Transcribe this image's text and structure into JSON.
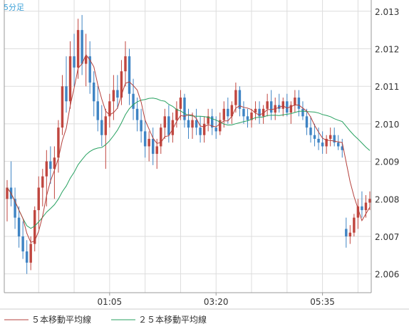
{
  "period_label": "5分足",
  "colors": {
    "up": "#c0463f",
    "down": "#3f84c4",
    "ma5": "#b5403c",
    "ma25": "#27a160",
    "grid": "#dddddd",
    "axis": "#999999",
    "period": "#3aa0d8"
  },
  "chart_data": {
    "type": "candlestick",
    "ylim": [
      2.0055,
      2.0133
    ],
    "y_ticks": [
      "2.013",
      "2.012",
      "2.011",
      "2.010",
      "2.009",
      "2.008",
      "2.007",
      "2.006"
    ],
    "x_ticks": [
      {
        "label": "01:05",
        "index": 26
      },
      {
        "label": "03:20",
        "index": 53
      },
      {
        "label": "05:35",
        "index": 80
      }
    ],
    "series": [
      {
        "name": "５本移動平均線",
        "color": "#b5403c"
      },
      {
        "name": "２５本移動平均線",
        "color": "#27a160"
      }
    ],
    "candles": [
      [
        2.008,
        2.0085,
        2.0074,
        2.0083
      ],
      [
        2.0083,
        2.009,
        2.0078,
        2.008
      ],
      [
        2.008,
        2.0083,
        2.0072,
        2.0075
      ],
      [
        2.0075,
        2.0078,
        2.0067,
        2.007
      ],
      [
        2.007,
        2.0074,
        2.0064,
        2.0066
      ],
      [
        2.0066,
        2.0069,
        2.006,
        2.0063
      ],
      [
        2.0063,
        2.007,
        2.0061,
        2.0068
      ],
      [
        2.0068,
        2.0078,
        2.0066,
        2.0077
      ],
      [
        2.0077,
        2.0086,
        2.0072,
        2.0083
      ],
      [
        2.0083,
        2.0088,
        2.0078,
        2.0086
      ],
      [
        2.0086,
        2.0093,
        2.0078,
        2.009
      ],
      [
        2.009,
        2.0094,
        2.0084,
        2.0088
      ],
      [
        2.0088,
        2.0094,
        2.008,
        2.0091
      ],
      [
        2.0091,
        2.0101,
        2.0087,
        2.0099
      ],
      [
        2.0099,
        2.0113,
        2.0097,
        2.011
      ],
      [
        2.011,
        2.0118,
        2.0103,
        2.0106
      ],
      [
        2.0106,
        2.0122,
        2.0104,
        2.0118
      ],
      [
        2.0118,
        2.0124,
        2.011,
        2.0115
      ],
      [
        2.0115,
        2.0128,
        2.0112,
        2.0125
      ],
      [
        2.0125,
        2.0129,
        2.0113,
        2.0116
      ],
      [
        2.0116,
        2.0124,
        2.011,
        2.0118
      ],
      [
        2.0118,
        2.0122,
        2.0108,
        2.0111
      ],
      [
        2.0111,
        2.0114,
        2.0102,
        2.0106
      ],
      [
        2.0106,
        2.011,
        2.0098,
        2.0101
      ],
      [
        2.0101,
        2.0105,
        2.0094,
        2.0097
      ],
      [
        2.0097,
        2.0104,
        2.0088,
        2.0102
      ],
      [
        2.0102,
        2.0108,
        2.0099,
        2.0106
      ],
      [
        2.0106,
        2.0113,
        2.0101,
        2.0109
      ],
      [
        2.0109,
        2.0113,
        2.0104,
        2.0107
      ],
      [
        2.0107,
        2.0117,
        2.0105,
        2.0114
      ],
      [
        2.0114,
        2.0122,
        2.011,
        2.0118
      ],
      [
        2.0118,
        2.012,
        2.0105,
        2.0108
      ],
      [
        2.0108,
        2.0112,
        2.0101,
        2.0104
      ],
      [
        2.0104,
        2.0107,
        2.0098,
        2.0101
      ],
      [
        2.0101,
        2.0104,
        2.0095,
        2.0098
      ],
      [
        2.0098,
        2.0101,
        2.0091,
        2.0094
      ],
      [
        2.0094,
        2.0098,
        2.009,
        2.0096
      ],
      [
        2.0096,
        2.0099,
        2.0089,
        2.0092
      ],
      [
        2.0092,
        2.0096,
        2.0088,
        2.0094
      ],
      [
        2.0094,
        2.01,
        2.0092,
        2.0099
      ],
      [
        2.0099,
        2.0104,
        2.0096,
        2.0102
      ],
      [
        2.0102,
        2.0105,
        2.0095,
        2.0097
      ],
      [
        2.0097,
        2.0103,
        2.0095,
        2.0101
      ],
      [
        2.0101,
        2.0106,
        2.0099,
        2.0104
      ],
      [
        2.0104,
        2.0109,
        2.0101,
        2.0107
      ],
      [
        2.0107,
        2.0108,
        2.0099,
        2.0101
      ],
      [
        2.0101,
        2.0104,
        2.0096,
        2.0099
      ],
      [
        2.0099,
        2.0103,
        2.0096,
        2.0101
      ],
      [
        2.0101,
        2.0104,
        2.0097,
        2.0099
      ],
      [
        2.0099,
        2.0102,
        2.0095,
        2.0097
      ],
      [
        2.0097,
        2.0102,
        2.0095,
        2.01
      ],
      [
        2.01,
        2.0104,
        2.0098,
        2.0102
      ],
      [
        2.0102,
        2.0104,
        2.0097,
        2.0099
      ],
      [
        2.0099,
        2.0102,
        2.0096,
        2.0098
      ],
      [
        2.0098,
        2.0103,
        2.0097,
        2.0101
      ],
      [
        2.0101,
        2.0106,
        2.0099,
        2.0104
      ],
      [
        2.0104,
        2.0107,
        2.01,
        2.0102
      ],
      [
        2.0102,
        2.0106,
        2.01,
        2.0105
      ],
      [
        2.0105,
        2.0111,
        2.0103,
        2.0109
      ],
      [
        2.0109,
        2.011,
        2.0102,
        2.0104
      ],
      [
        2.0104,
        2.0106,
        2.01,
        2.0102
      ],
      [
        2.0102,
        2.0104,
        2.0099,
        2.0101
      ],
      [
        2.0101,
        2.0104,
        2.0099,
        2.0103
      ],
      [
        2.0103,
        2.0106,
        2.0101,
        2.0104
      ],
      [
        2.0104,
        2.0106,
        2.01,
        2.0102
      ],
      [
        2.0102,
        2.0105,
        2.01,
        2.0104
      ],
      [
        2.0104,
        2.0108,
        2.0102,
        2.0106
      ],
      [
        2.0106,
        2.0109,
        2.0101,
        2.0103
      ],
      [
        2.0103,
        2.0107,
        2.0101,
        2.0105
      ],
      [
        2.0105,
        2.0108,
        2.0103,
        2.0104
      ],
      [
        2.0104,
        2.0107,
        2.0102,
        2.0106
      ],
      [
        2.0106,
        2.0108,
        2.0102,
        2.0103
      ],
      [
        2.0103,
        2.0106,
        2.01,
        2.0105
      ],
      [
        2.0105,
        2.0109,
        2.0103,
        2.0107
      ],
      [
        2.0107,
        2.0109,
        2.0102,
        2.0104
      ],
      [
        2.0104,
        2.0106,
        2.0101,
        2.0102
      ],
      [
        2.0102,
        2.0104,
        2.0097,
        2.0099
      ],
      [
        2.0099,
        2.0102,
        2.0095,
        2.0097
      ],
      [
        2.0097,
        2.01,
        2.0094,
        2.0096
      ],
      [
        2.0096,
        2.0099,
        2.0093,
        2.0095
      ],
      [
        2.0095,
        2.0098,
        2.0092,
        2.0094
      ],
      [
        2.0094,
        2.0097,
        2.0092,
        2.0096
      ],
      [
        2.0096,
        2.0099,
        2.0094,
        2.0097
      ],
      [
        2.0097,
        2.0099,
        2.0094,
        2.0095
      ],
      [
        2.0095,
        2.0097,
        2.0093,
        2.0094
      ],
      [
        2.0094,
        2.0096,
        2.0091,
        2.0093
      ],
      [
        2.0072,
        2.0075,
        2.0067,
        2.007
      ],
      [
        2.007,
        2.0073,
        2.0068,
        2.0071
      ],
      [
        2.0071,
        2.0076,
        2.007,
        2.0075
      ],
      [
        2.0075,
        2.008,
        2.0072,
        2.0078
      ],
      [
        2.0078,
        2.0082,
        2.0075,
        2.0077
      ],
      [
        2.0077,
        2.0081,
        2.0075,
        2.0079
      ],
      [
        2.0079,
        2.0082,
        2.0077,
        2.008
      ]
    ]
  }
}
